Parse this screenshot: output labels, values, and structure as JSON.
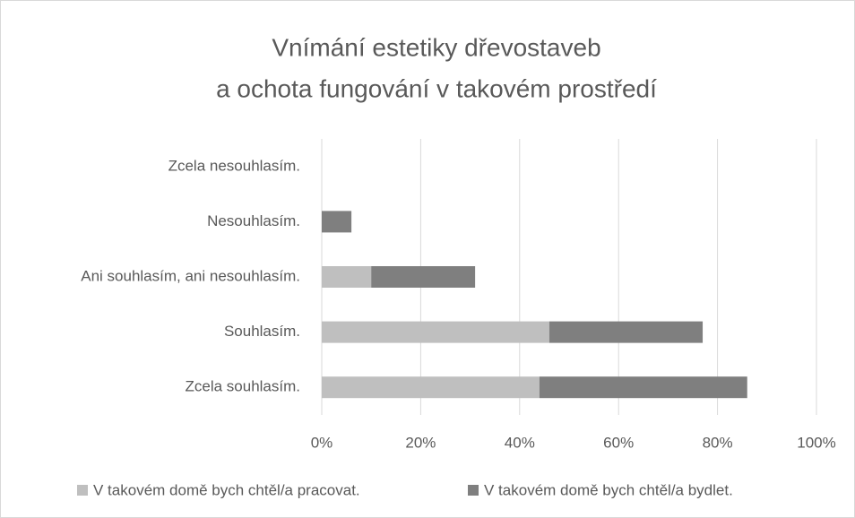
{
  "chart_data": {
    "type": "stacked-bar-horizontal",
    "title": [
      "Vnímání estetiky dřevostaveb",
      "a ochota fungování v takovém prostředí"
    ],
    "categories": [
      "Zcela nesouhlasím.",
      "Nesouhlasím.",
      "Ani souhlasím, ani nesouhlasím.",
      "Souhlasím.",
      "Zcela souhlasím."
    ],
    "series": [
      {
        "name": "V takovém domě bych chtěl/a pracovat.",
        "color": "#bfbfbf",
        "values": [
          0,
          0,
          10,
          46,
          44
        ]
      },
      {
        "name": "V takovém domě bych chtěl/a bydlet.",
        "color": "#7f7f7f",
        "values": [
          0,
          6,
          21,
          31,
          42
        ]
      }
    ],
    "xlim": [
      0,
      100
    ],
    "xticks": [
      {
        "value": 0,
        "label": "0%"
      },
      {
        "value": 20,
        "label": "20%"
      },
      {
        "value": 40,
        "label": "40%"
      },
      {
        "value": 60,
        "label": "60%"
      },
      {
        "value": 80,
        "label": "80%"
      },
      {
        "value": 100,
        "label": "100%"
      }
    ],
    "grid": true,
    "legend": "bottom"
  }
}
